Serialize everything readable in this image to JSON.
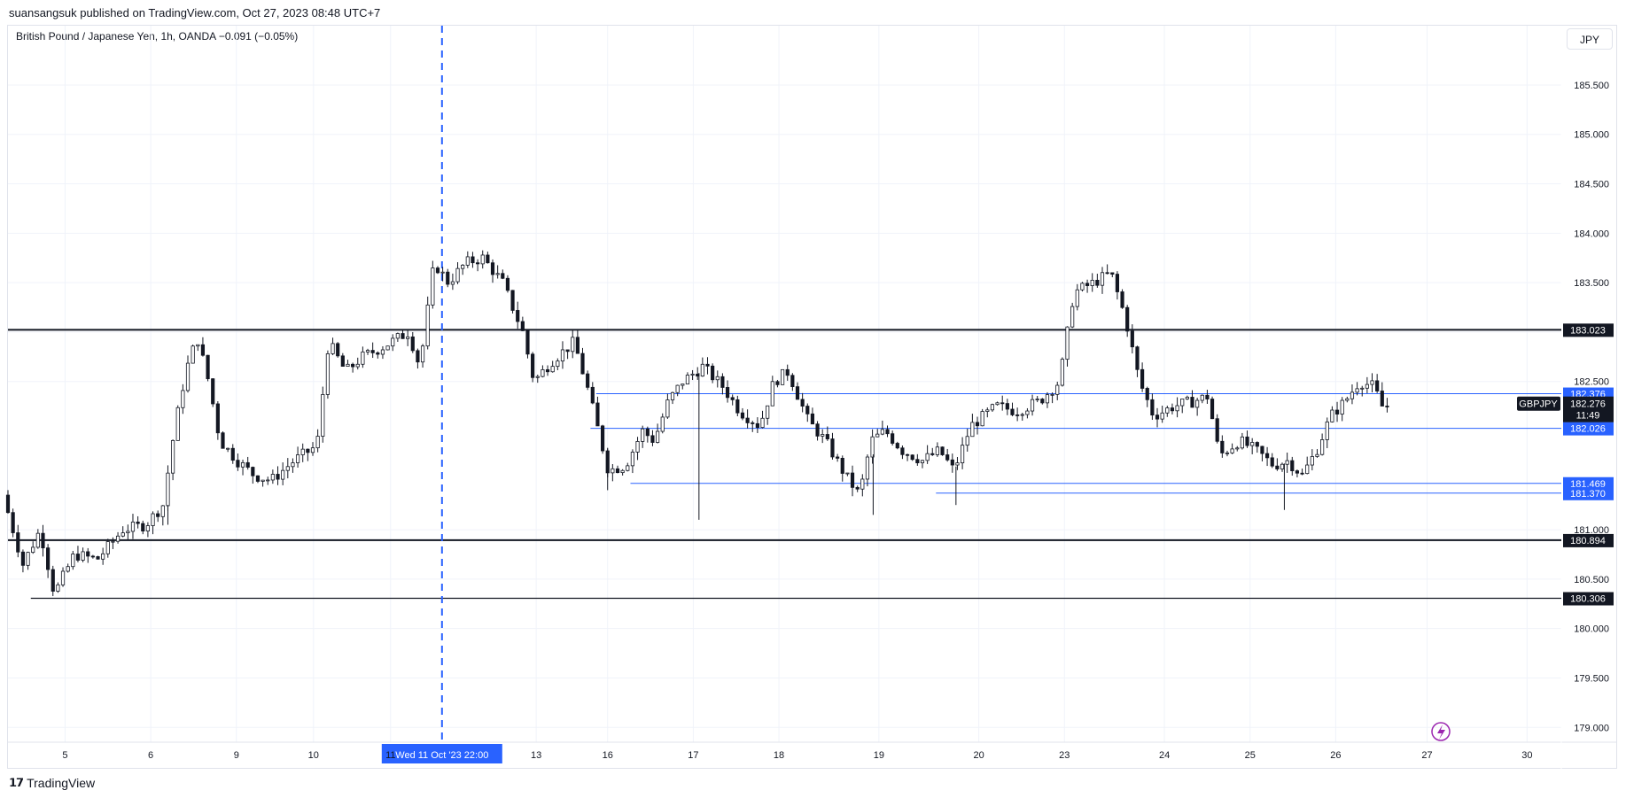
{
  "header": {
    "published": "suansangsuk published on TradingView.com, Oct 27, 2023 08:48 UTC+7",
    "symbol_info": "British Pound / Japanese Yen, 1h, OANDA −0.091 (−0.05%)",
    "currency_button": "JPY"
  },
  "footer": {
    "brand": "TradingView",
    "brand_icon": "tradingview-logo-icon"
  },
  "colors": {
    "up": "#ffffff",
    "down": "#131722",
    "level_black": "#131722",
    "level_blue": "#2962ff",
    "highlight": "#2962ff"
  },
  "chart_data": {
    "type": "candlestick",
    "title": "British Pound / Japanese Yen, 1h, OANDA",
    "ylim": [
      178.85,
      186.1
    ],
    "y_ticks": [
      "185.500",
      "185.000",
      "184.500",
      "184.000",
      "183.500",
      "183.000",
      "182.500",
      "181.000",
      "180.500",
      "180.000",
      "179.500",
      "179.000"
    ],
    "x_ticks": [
      {
        "label": "5",
        "i": 0
      },
      {
        "label": "6",
        "i": 1
      },
      {
        "label": "9",
        "i": 2
      },
      {
        "label": "10",
        "i": 3
      },
      {
        "label": "11",
        "i": 4
      },
      {
        "label": "13",
        "i": 6
      },
      {
        "label": "16",
        "i": 7
      },
      {
        "label": "17",
        "i": 8
      },
      {
        "label": "18",
        "i": 9
      },
      {
        "label": "19",
        "i": 10
      },
      {
        "label": "20",
        "i": 11
      },
      {
        "label": "23",
        "i": 12
      },
      {
        "label": "24",
        "i": 13
      },
      {
        "label": "25",
        "i": 14
      },
      {
        "label": "26",
        "i": 15
      },
      {
        "label": "27",
        "i": 16
      },
      {
        "label": "30",
        "i": 17
      }
    ],
    "x_tick_positions": [
      2,
      5,
      8,
      10.7,
      13.4,
      16.7,
      18.5,
      21,
      24,
      27,
      30.5,
      34,
      37,
      40.5,
      43.5,
      46.5,
      49.7,
      53.2
    ],
    "crosshair": {
      "label": "Wed 11 Oct '23   22:00",
      "day_pos": 15.2
    },
    "path_points": [
      [
        0.0,
        181.35
      ],
      [
        0.7,
        180.65
      ],
      [
        1.3,
        181.0
      ],
      [
        1.8,
        180.35
      ],
      [
        2.5,
        180.75
      ],
      [
        3.3,
        180.7
      ],
      [
        4.2,
        181.0
      ],
      [
        5.0,
        181.05
      ],
      [
        5.6,
        181.25
      ],
      [
        6.0,
        182.0
      ],
      [
        6.4,
        182.6
      ],
      [
        6.8,
        182.95
      ],
      [
        7.2,
        182.5
      ],
      [
        7.6,
        181.9
      ],
      [
        8.2,
        181.7
      ],
      [
        8.8,
        181.55
      ],
      [
        9.4,
        181.5
      ],
      [
        10.2,
        181.7
      ],
      [
        11.0,
        181.85
      ],
      [
        11.4,
        182.9
      ],
      [
        12.0,
        182.6
      ],
      [
        12.6,
        182.75
      ],
      [
        13.3,
        182.85
      ],
      [
        14.2,
        183.0
      ],
      [
        14.6,
        182.65
      ],
      [
        15.1,
        183.7
      ],
      [
        15.6,
        183.5
      ],
      [
        16.2,
        183.7
      ],
      [
        16.8,
        183.75
      ],
      [
        17.5,
        183.5
      ],
      [
        18.2,
        183.0
      ],
      [
        18.6,
        182.5
      ],
      [
        19.2,
        182.7
      ],
      [
        20.0,
        182.9
      ],
      [
        20.5,
        182.4
      ],
      [
        21.2,
        181.6
      ],
      [
        21.8,
        181.65
      ],
      [
        22.4,
        182.0
      ],
      [
        22.8,
        181.9
      ],
      [
        23.3,
        182.3
      ],
      [
        23.8,
        182.5
      ],
      [
        24.5,
        182.65
      ],
      [
        25.2,
        182.45
      ],
      [
        25.8,
        182.2
      ],
      [
        26.5,
        182.05
      ],
      [
        27.0,
        182.5
      ],
      [
        27.5,
        182.6
      ],
      [
        28.2,
        182.1
      ],
      [
        28.8,
        181.9
      ],
      [
        29.5,
        181.55
      ],
      [
        30.0,
        181.35
      ],
      [
        30.4,
        181.9
      ],
      [
        30.9,
        182.0
      ],
      [
        31.5,
        181.8
      ],
      [
        32.2,
        181.7
      ],
      [
        32.8,
        181.8
      ],
      [
        33.3,
        181.6
      ],
      [
        33.9,
        182.05
      ],
      [
        34.8,
        182.25
      ],
      [
        35.5,
        182.2
      ],
      [
        36.3,
        182.3
      ],
      [
        37.0,
        182.5
      ],
      [
        37.5,
        183.4
      ],
      [
        38.2,
        183.5
      ],
      [
        38.8,
        183.6
      ],
      [
        39.3,
        183.15
      ],
      [
        39.8,
        182.5
      ],
      [
        40.3,
        182.15
      ],
      [
        41.0,
        182.25
      ],
      [
        41.7,
        182.3
      ],
      [
        42.2,
        182.35
      ],
      [
        42.6,
        181.75
      ],
      [
        43.3,
        181.9
      ],
      [
        43.9,
        181.8
      ],
      [
        44.5,
        181.65
      ],
      [
        45.0,
        181.7
      ],
      [
        45.5,
        181.55
      ],
      [
        46.0,
        181.8
      ],
      [
        46.5,
        182.15
      ],
      [
        47.0,
        182.3
      ],
      [
        47.5,
        182.5
      ],
      [
        48.0,
        182.45
      ],
      [
        48.3,
        182.25
      ]
    ],
    "extra_wicks": [
      {
        "x": 5.6,
        "low": 181.05
      },
      {
        "x": 24.2,
        "low": 181.1
      },
      {
        "x": 30.3,
        "low": 181.15
      },
      {
        "x": 33.2,
        "low": 181.25
      },
      {
        "x": 44.7,
        "low": 181.2
      },
      {
        "x": 21.0,
        "low": 181.4
      }
    ],
    "levels": [
      {
        "value": "183.023",
        "color": "black",
        "x0": 0,
        "width": 2
      },
      {
        "value": "182.376",
        "color": "blue",
        "x0": 20.6,
        "width": 1
      },
      {
        "value": "182.026",
        "color": "blue",
        "x0": 20.4,
        "width": 1
      },
      {
        "value": "181.469",
        "color": "blue",
        "x0": 21.8,
        "width": 1
      },
      {
        "value": "181.370",
        "color": "blue",
        "x0": 32.5,
        "width": 1
      },
      {
        "value": "180.894",
        "color": "black",
        "x0": 0,
        "width": 2
      },
      {
        "value": "180.306",
        "color": "black",
        "x0": 0.8,
        "width": 1.2
      }
    ],
    "last_price": {
      "symbol": "GBPJPY",
      "value": "182.276",
      "countdown": "11:49"
    },
    "x_domain": [
      0,
      54.4
    ]
  }
}
